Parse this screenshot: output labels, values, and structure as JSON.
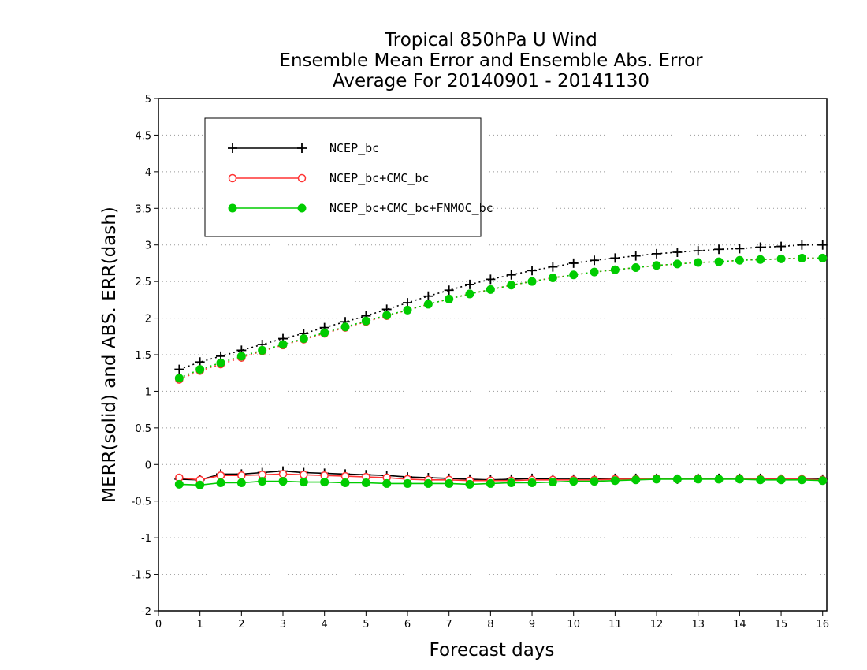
{
  "chart_data": {
    "type": "line",
    "title_lines": [
      "Tropical 850hPa U Wind",
      "Ensemble Mean Error and Ensemble Abs. Error",
      "Average For 20140901 - 20141130"
    ],
    "xlabel": "Forecast days",
    "ylabel": "MERR(solid) and ABS. ERR(dash)",
    "xlim": [
      0,
      16.1
    ],
    "ylim": [
      -2,
      5
    ],
    "xticks": [
      "0",
      "1",
      "2",
      "3",
      "4",
      "5",
      "6",
      "7",
      "8",
      "9",
      "10",
      "11",
      "12",
      "13",
      "14",
      "15",
      "16"
    ],
    "yticks": [
      "-2",
      "-1.5",
      "-1",
      "-0.5",
      "0",
      "0.5",
      "1",
      "1.5",
      "2",
      "2.5",
      "3",
      "3.5",
      "4",
      "4.5",
      "5"
    ],
    "grid": "horizontal dotted",
    "legend_position": "top-left",
    "x": [
      0.5,
      1,
      1.5,
      2,
      2.5,
      3,
      3.5,
      4,
      4.5,
      5,
      5.5,
      6,
      6.5,
      7,
      7.5,
      8,
      8.5,
      9,
      9.5,
      10,
      10.5,
      11,
      11.5,
      12,
      12.5,
      13,
      13.5,
      14,
      14.5,
      15,
      15.5,
      16
    ],
    "series": [
      {
        "name": "NCEP_bc",
        "color": "#000000",
        "marker": "plus",
        "merr": [
          -0.2,
          -0.21,
          -0.13,
          -0.13,
          -0.11,
          -0.09,
          -0.11,
          -0.12,
          -0.13,
          -0.14,
          -0.15,
          -0.17,
          -0.18,
          -0.19,
          -0.2,
          -0.21,
          -0.2,
          -0.19,
          -0.2,
          -0.2,
          -0.2,
          -0.19,
          -0.19,
          -0.19,
          -0.2,
          -0.19,
          -0.19,
          -0.19,
          -0.19,
          -0.2,
          -0.2,
          -0.2
        ],
        "abs_err": [
          1.3,
          1.4,
          1.48,
          1.56,
          1.64,
          1.72,
          1.79,
          1.87,
          1.95,
          2.03,
          2.12,
          2.21,
          2.3,
          2.38,
          2.46,
          2.53,
          2.59,
          2.65,
          2.7,
          2.75,
          2.79,
          2.82,
          2.85,
          2.88,
          2.9,
          2.92,
          2.94,
          2.95,
          2.97,
          2.98,
          3.0,
          3.0
        ]
      },
      {
        "name": "NCEP_bc+CMC_bc",
        "color": "#ff3333",
        "marker": "open-circle",
        "merr": [
          -0.18,
          -0.21,
          -0.15,
          -0.15,
          -0.14,
          -0.13,
          -0.14,
          -0.15,
          -0.16,
          -0.17,
          -0.18,
          -0.2,
          -0.21,
          -0.21,
          -0.22,
          -0.22,
          -0.22,
          -0.21,
          -0.21,
          -0.21,
          -0.21,
          -0.2,
          -0.2,
          -0.19,
          -0.2,
          -0.19,
          -0.2,
          -0.19,
          -0.2,
          -0.2,
          -0.2,
          -0.21
        ],
        "abs_err": [
          1.16,
          1.28,
          1.37,
          1.46,
          1.55,
          1.63,
          1.71,
          1.79,
          1.87,
          1.95,
          2.03,
          2.11,
          2.19,
          2.26,
          2.33,
          2.39,
          2.45,
          2.5,
          2.55,
          2.59,
          2.63,
          2.66,
          2.69,
          2.72,
          2.74,
          2.76,
          2.77,
          2.79,
          2.8,
          2.81,
          2.82,
          2.82
        ]
      },
      {
        "name": "NCEP_bc+CMC_bc+FNMOC_bc",
        "color": "#00cc00",
        "marker": "filled-circle",
        "merr": [
          -0.27,
          -0.28,
          -0.25,
          -0.25,
          -0.23,
          -0.23,
          -0.24,
          -0.24,
          -0.25,
          -0.25,
          -0.26,
          -0.26,
          -0.26,
          -0.26,
          -0.27,
          -0.26,
          -0.25,
          -0.25,
          -0.24,
          -0.23,
          -0.23,
          -0.22,
          -0.21,
          -0.2,
          -0.2,
          -0.2,
          -0.2,
          -0.2,
          -0.21,
          -0.21,
          -0.21,
          -0.22
        ],
        "abs_err": [
          1.18,
          1.3,
          1.39,
          1.48,
          1.56,
          1.64,
          1.72,
          1.8,
          1.88,
          1.96,
          2.04,
          2.11,
          2.19,
          2.26,
          2.33,
          2.39,
          2.45,
          2.5,
          2.55,
          2.59,
          2.63,
          2.66,
          2.69,
          2.72,
          2.74,
          2.76,
          2.77,
          2.79,
          2.8,
          2.81,
          2.82,
          2.82
        ]
      }
    ]
  }
}
